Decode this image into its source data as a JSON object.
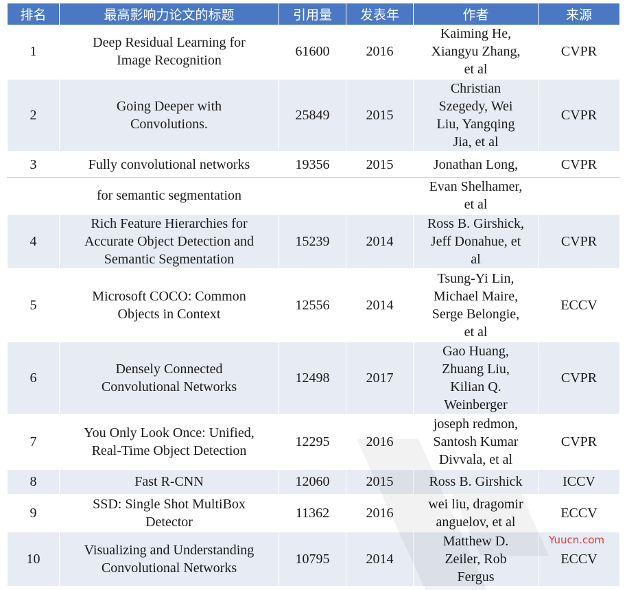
{
  "table": {
    "headers": [
      "排名",
      "最高影响力论文的标题",
      "引用量",
      "发表年",
      "作者",
      "来源"
    ],
    "rows": [
      {
        "rank": "1",
        "title": [
          "Deep Residual Learning for",
          "Image Recognition"
        ],
        "citations": "61600",
        "year": "2016",
        "authors": [
          "Kaiming He,",
          "Xiangyu Zhang,",
          "et al"
        ],
        "source": "CVPR"
      },
      {
        "rank": "2",
        "title": [
          "Going Deeper with",
          "Convolutions."
        ],
        "citations": "25849",
        "year": "2015",
        "authors": [
          "Christian",
          "Szegedy, Wei",
          "Liu, Yangqing",
          "Jia, et al"
        ],
        "source": "CVPR"
      },
      {
        "rank": "3",
        "title": [
          "Fully convolutional networks"
        ],
        "citations": "19356",
        "year": "2015",
        "authors": [
          "Jonathan Long,"
        ],
        "source": "CVPR"
      },
      {
        "rank": "",
        "title": [
          "for semantic segmentation"
        ],
        "citations": "",
        "year": "",
        "authors": [
          "Evan Shelhamer,",
          "et al"
        ],
        "source": ""
      },
      {
        "rank": "4",
        "title": [
          "Rich Feature Hierarchies for",
          "Accurate Object Detection and",
          "Semantic Segmentation"
        ],
        "citations": "15239",
        "year": "2014",
        "authors": [
          "Ross B. Girshick,",
          "Jeff Donahue, et",
          "al"
        ],
        "source": "CVPR"
      },
      {
        "rank": "5",
        "title": [
          "Microsoft COCO: Common",
          "Objects in Context"
        ],
        "citations": "12556",
        "year": "2014",
        "authors": [
          "Tsung-Yi Lin,",
          "Michael Maire,",
          "Serge Belongie,",
          "et al"
        ],
        "source": "ECCV"
      },
      {
        "rank": "6",
        "title": [
          "Densely Connected",
          "Convolutional Networks"
        ],
        "citations": "12498",
        "year": "2017",
        "authors": [
          "Gao Huang,",
          "Zhuang Liu,",
          "Kilian Q.",
          "Weinberger"
        ],
        "source": "CVPR"
      },
      {
        "rank": "7",
        "title": [
          "You Only Look Once: Unified,",
          "Real-Time Object Detection"
        ],
        "citations": "12295",
        "year": "2016",
        "authors": [
          "joseph redmon,",
          "Santosh Kumar",
          "Divvala, et al"
        ],
        "source": "CVPR"
      },
      {
        "rank": "8",
        "title": [
          "Fast R-CNN"
        ],
        "citations": "12060",
        "year": "2015",
        "authors": [
          "Ross B. Girshick"
        ],
        "source": "ICCV"
      },
      {
        "rank": "9",
        "title": [
          "SSD: Single Shot MultiBox",
          "Detector"
        ],
        "citations": "11362",
        "year": "2016",
        "authors": [
          "wei liu, dragomir",
          "anguelov, et al"
        ],
        "source": "ECCV"
      },
      {
        "rank": "10",
        "title": [
          "Visualizing and Understanding",
          "Convolutional Networks"
        ],
        "citations": "10795",
        "year": "2014",
        "authors": [
          "Matthew D.",
          "Zeiler, Rob",
          "Fergus"
        ],
        "source": "ECCV"
      }
    ]
  },
  "watermark": {
    "text": "Yuucn.com",
    "color": "#e03838"
  }
}
